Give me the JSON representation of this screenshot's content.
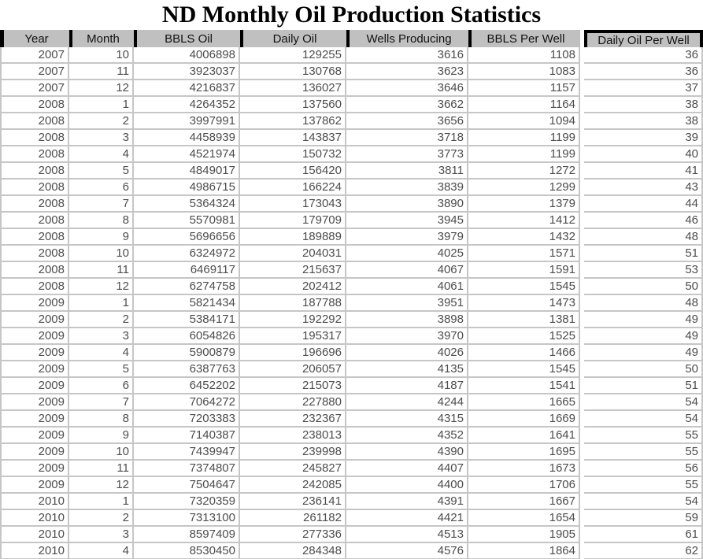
{
  "chart_data": {
    "type": "table",
    "title": "ND Monthly Oil Production Statistics",
    "columns": [
      "Year",
      "Month",
      "BBLS Oil",
      "Daily Oil",
      "Wells Producing",
      "BBLS Per Well",
      "Daily Oil Per Well"
    ],
    "rows": [
      [
        2007,
        10,
        4006898,
        129255,
        3616,
        1108,
        36
      ],
      [
        2007,
        11,
        3923037,
        130768,
        3623,
        1083,
        36
      ],
      [
        2007,
        12,
        4216837,
        136027,
        3646,
        1157,
        37
      ],
      [
        2008,
        1,
        4264352,
        137560,
        3662,
        1164,
        38
      ],
      [
        2008,
        2,
        3997991,
        137862,
        3656,
        1094,
        38
      ],
      [
        2008,
        3,
        4458939,
        143837,
        3718,
        1199,
        39
      ],
      [
        2008,
        4,
        4521974,
        150732,
        3773,
        1199,
        40
      ],
      [
        2008,
        5,
        4849017,
        156420,
        3811,
        1272,
        41
      ],
      [
        2008,
        6,
        4986715,
        166224,
        3839,
        1299,
        43
      ],
      [
        2008,
        7,
        5364324,
        173043,
        3890,
        1379,
        44
      ],
      [
        2008,
        8,
        5570981,
        179709,
        3945,
        1412,
        46
      ],
      [
        2008,
        9,
        5696656,
        189889,
        3979,
        1432,
        48
      ],
      [
        2008,
        10,
        6324972,
        204031,
        4025,
        1571,
        51
      ],
      [
        2008,
        11,
        6469117,
        215637,
        4067,
        1591,
        53
      ],
      [
        2008,
        12,
        6274758,
        202412,
        4061,
        1545,
        50
      ],
      [
        2009,
        1,
        5821434,
        187788,
        3951,
        1473,
        48
      ],
      [
        2009,
        2,
        5384171,
        192292,
        3898,
        1381,
        49
      ],
      [
        2009,
        3,
        6054826,
        195317,
        3970,
        1525,
        49
      ],
      [
        2009,
        4,
        5900879,
        196696,
        4026,
        1466,
        49
      ],
      [
        2009,
        5,
        6387763,
        206057,
        4135,
        1545,
        50
      ],
      [
        2009,
        6,
        6452202,
        215073,
        4187,
        1541,
        51
      ],
      [
        2009,
        7,
        7064272,
        227880,
        4244,
        1665,
        54
      ],
      [
        2009,
        8,
        7203383,
        232367,
        4315,
        1669,
        54
      ],
      [
        2009,
        9,
        7140387,
        238013,
        4352,
        1641,
        55
      ],
      [
        2009,
        10,
        7439947,
        239998,
        4390,
        1695,
        55
      ],
      [
        2009,
        11,
        7374807,
        245827,
        4407,
        1673,
        56
      ],
      [
        2009,
        12,
        7504647,
        242085,
        4400,
        1706,
        55
      ],
      [
        2010,
        1,
        7320359,
        236141,
        4391,
        1667,
        54
      ],
      [
        2010,
        2,
        7313100,
        261182,
        4421,
        1654,
        59
      ],
      [
        2010,
        3,
        8597409,
        277336,
        4513,
        1905,
        61
      ],
      [
        2010,
        4,
        8530450,
        284348,
        4576,
        1864,
        62
      ]
    ],
    "layout": {
      "legend": "none",
      "grid": "on",
      "header_bg": "#c0c0c0",
      "grid_line_color": "#c6c6c6",
      "header_divider_color": "#000000"
    }
  }
}
